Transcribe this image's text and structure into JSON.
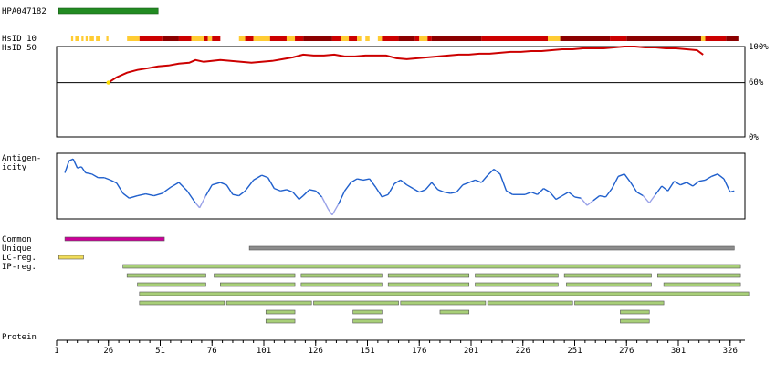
{
  "antibody_id": "HPA047182",
  "labels": {
    "hsid10": "HsID 10",
    "hsid50": "HsID 50",
    "antigenicity_line1": "Antigen-",
    "antigenicity_line2": "icity",
    "common": "Common",
    "unique": "Unique",
    "lc_reg": "LC-reg.",
    "ip_reg": "IP-reg.",
    "protein": "Protein"
  },
  "identity_axis": {
    "top": "100%",
    "mid": "60%",
    "bottom": "0%"
  },
  "colors": {
    "antibody_bar": "#228b22",
    "identity_line": "#cc0000",
    "identity_high": "#8b0000",
    "identity_mid": "#cc0000",
    "identity_low": "#ffcc33",
    "antigenicity_line": "#1f5fcc",
    "antigenicity_low": "#9aa2e8",
    "common_bar": "#cc0099",
    "unique_bar": "#8c8c8c",
    "lc_bar": "#f0dc5a",
    "ip_bar": "#a8cf78"
  },
  "protein_axis": {
    "range": [
      1,
      332
    ],
    "ticks": [
      1,
      26,
      51,
      76,
      101,
      126,
      151,
      176,
      201,
      226,
      251,
      276,
      301,
      326
    ]
  },
  "antibody_region": [
    2,
    50
  ],
  "hsid10_segments": [
    {
      "start": 8,
      "end": 9,
      "level": "low"
    },
    {
      "start": 10,
      "end": 12,
      "level": "low"
    },
    {
      "start": 13,
      "end": 14,
      "level": "low"
    },
    {
      "start": 15,
      "end": 16,
      "level": "low"
    },
    {
      "start": 17,
      "end": 19,
      "level": "low"
    },
    {
      "start": 20,
      "end": 22,
      "level": "low"
    },
    {
      "start": 25,
      "end": 26,
      "level": "low"
    },
    {
      "start": 35,
      "end": 41,
      "level": "low"
    },
    {
      "start": 41,
      "end": 52,
      "level": "mid"
    },
    {
      "start": 52,
      "end": 60,
      "level": "high"
    },
    {
      "start": 60,
      "end": 66,
      "level": "mid"
    },
    {
      "start": 66,
      "end": 72,
      "level": "low"
    },
    {
      "start": 72,
      "end": 74,
      "level": "mid"
    },
    {
      "start": 74,
      "end": 76,
      "level": "low"
    },
    {
      "start": 76,
      "end": 80,
      "level": "mid"
    },
    {
      "start": 89,
      "end": 92,
      "level": "low"
    },
    {
      "start": 92,
      "end": 96,
      "level": "mid"
    },
    {
      "start": 96,
      "end": 104,
      "level": "low"
    },
    {
      "start": 104,
      "end": 112,
      "level": "mid"
    },
    {
      "start": 112,
      "end": 116,
      "level": "low"
    },
    {
      "start": 116,
      "end": 120,
      "level": "mid"
    },
    {
      "start": 120,
      "end": 134,
      "level": "high"
    },
    {
      "start": 134,
      "end": 138,
      "level": "mid"
    },
    {
      "start": 138,
      "end": 142,
      "level": "low"
    },
    {
      "start": 142,
      "end": 146,
      "level": "mid"
    },
    {
      "start": 146,
      "end": 148,
      "level": "low"
    },
    {
      "start": 150,
      "end": 152,
      "level": "low"
    },
    {
      "start": 156,
      "end": 158,
      "level": "low"
    },
    {
      "start": 158,
      "end": 166,
      "level": "mid"
    },
    {
      "start": 166,
      "end": 174,
      "level": "high"
    },
    {
      "start": 174,
      "end": 176,
      "level": "mid"
    },
    {
      "start": 176,
      "end": 180,
      "level": "low"
    },
    {
      "start": 180,
      "end": 182,
      "level": "mid"
    },
    {
      "start": 182,
      "end": 206,
      "level": "high"
    },
    {
      "start": 206,
      "end": 238,
      "level": "mid"
    },
    {
      "start": 238,
      "end": 244,
      "level": "low"
    },
    {
      "start": 244,
      "end": 268,
      "level": "high"
    },
    {
      "start": 268,
      "end": 276,
      "level": "mid"
    },
    {
      "start": 276,
      "end": 312,
      "level": "high"
    },
    {
      "start": 312,
      "end": 314,
      "level": "low"
    },
    {
      "start": 314,
      "end": 324,
      "level": "mid"
    },
    {
      "start": 324,
      "end": 330,
      "level": "high"
    }
  ],
  "hsid50_profile": [
    [
      26,
      60
    ],
    [
      30,
      66
    ],
    [
      35,
      71
    ],
    [
      40,
      74
    ],
    [
      45,
      76
    ],
    [
      50,
      78
    ],
    [
      55,
      79
    ],
    [
      60,
      81
    ],
    [
      65,
      82
    ],
    [
      68,
      85
    ],
    [
      72,
      83
    ],
    [
      76,
      84
    ],
    [
      80,
      85
    ],
    [
      85,
      84
    ],
    [
      90,
      83
    ],
    [
      95,
      82
    ],
    [
      100,
      83
    ],
    [
      105,
      84
    ],
    [
      110,
      86
    ],
    [
      115,
      88
    ],
    [
      120,
      91
    ],
    [
      125,
      90
    ],
    [
      130,
      90
    ],
    [
      135,
      91
    ],
    [
      140,
      89
    ],
    [
      145,
      89
    ],
    [
      150,
      90
    ],
    [
      155,
      90
    ],
    [
      160,
      90
    ],
    [
      165,
      87
    ],
    [
      170,
      86
    ],
    [
      175,
      87
    ],
    [
      180,
      88
    ],
    [
      185,
      89
    ],
    [
      190,
      90
    ],
    [
      195,
      91
    ],
    [
      200,
      91
    ],
    [
      205,
      92
    ],
    [
      210,
      92
    ],
    [
      215,
      93
    ],
    [
      220,
      94
    ],
    [
      225,
      94
    ],
    [
      230,
      95
    ],
    [
      235,
      95
    ],
    [
      240,
      96
    ],
    [
      245,
      97
    ],
    [
      250,
      97
    ],
    [
      255,
      98
    ],
    [
      260,
      98
    ],
    [
      265,
      98
    ],
    [
      270,
      99
    ],
    [
      275,
      100
    ],
    [
      280,
      100
    ],
    [
      285,
      99
    ],
    [
      290,
      99
    ],
    [
      295,
      98
    ],
    [
      300,
      98
    ],
    [
      305,
      97
    ],
    [
      310,
      96
    ],
    [
      313,
      91
    ]
  ],
  "antigenicity_profile": [
    [
      5,
      0.72
    ],
    [
      7,
      0.92
    ],
    [
      9,
      0.95
    ],
    [
      11,
      0.8
    ],
    [
      13,
      0.82
    ],
    [
      15,
      0.72
    ],
    [
      18,
      0.7
    ],
    [
      21,
      0.64
    ],
    [
      24,
      0.64
    ],
    [
      27,
      0.6
    ],
    [
      30,
      0.55
    ],
    [
      33,
      0.38
    ],
    [
      36,
      0.3
    ],
    [
      40,
      0.34
    ],
    [
      44,
      0.37
    ],
    [
      48,
      0.34
    ],
    [
      52,
      0.38
    ],
    [
      56,
      0.48
    ],
    [
      60,
      0.56
    ],
    [
      64,
      0.42
    ],
    [
      68,
      0.22
    ],
    [
      70,
      0.14
    ],
    [
      73,
      0.34
    ],
    [
      76,
      0.52
    ],
    [
      80,
      0.56
    ],
    [
      83,
      0.52
    ],
    [
      86,
      0.36
    ],
    [
      89,
      0.34
    ],
    [
      92,
      0.42
    ],
    [
      96,
      0.6
    ],
    [
      100,
      0.68
    ],
    [
      103,
      0.64
    ],
    [
      106,
      0.46
    ],
    [
      109,
      0.42
    ],
    [
      112,
      0.44
    ],
    [
      115,
      0.4
    ],
    [
      118,
      0.28
    ],
    [
      120,
      0.34
    ],
    [
      123,
      0.44
    ],
    [
      126,
      0.42
    ],
    [
      129,
      0.32
    ],
    [
      132,
      0.12
    ],
    [
      134,
      0.02
    ],
    [
      137,
      0.2
    ],
    [
      140,
      0.42
    ],
    [
      143,
      0.56
    ],
    [
      146,
      0.62
    ],
    [
      149,
      0.6
    ],
    [
      152,
      0.62
    ],
    [
      155,
      0.48
    ],
    [
      158,
      0.32
    ],
    [
      161,
      0.36
    ],
    [
      164,
      0.54
    ],
    [
      167,
      0.6
    ],
    [
      170,
      0.52
    ],
    [
      173,
      0.46
    ],
    [
      176,
      0.4
    ],
    [
      179,
      0.44
    ],
    [
      182,
      0.56
    ],
    [
      185,
      0.44
    ],
    [
      188,
      0.4
    ],
    [
      191,
      0.38
    ],
    [
      194,
      0.4
    ],
    [
      197,
      0.52
    ],
    [
      200,
      0.56
    ],
    [
      203,
      0.6
    ],
    [
      206,
      0.56
    ],
    [
      209,
      0.68
    ],
    [
      212,
      0.78
    ],
    [
      215,
      0.7
    ],
    [
      218,
      0.42
    ],
    [
      221,
      0.36
    ],
    [
      224,
      0.36
    ],
    [
      227,
      0.36
    ],
    [
      230,
      0.4
    ],
    [
      233,
      0.36
    ],
    [
      236,
      0.46
    ],
    [
      239,
      0.4
    ],
    [
      242,
      0.28
    ],
    [
      245,
      0.34
    ],
    [
      248,
      0.4
    ],
    [
      251,
      0.32
    ],
    [
      254,
      0.3
    ],
    [
      257,
      0.18
    ],
    [
      260,
      0.26
    ],
    [
      263,
      0.34
    ],
    [
      266,
      0.32
    ],
    [
      269,
      0.46
    ],
    [
      272,
      0.66
    ],
    [
      275,
      0.7
    ],
    [
      278,
      0.56
    ],
    [
      281,
      0.4
    ],
    [
      284,
      0.34
    ],
    [
      287,
      0.22
    ],
    [
      290,
      0.36
    ],
    [
      293,
      0.5
    ],
    [
      296,
      0.42
    ],
    [
      299,
      0.58
    ],
    [
      302,
      0.52
    ],
    [
      305,
      0.56
    ],
    [
      308,
      0.5
    ],
    [
      311,
      0.58
    ],
    [
      314,
      0.6
    ],
    [
      317,
      0.66
    ],
    [
      320,
      0.7
    ],
    [
      323,
      0.62
    ],
    [
      326,
      0.4
    ],
    [
      328,
      0.42
    ]
  ],
  "common_regions": [
    [
      5,
      53
    ]
  ],
  "unique_regions": [
    [
      94,
      328
    ]
  ],
  "lc_regions": [
    [
      2,
      14
    ]
  ],
  "ip_rows": [
    [
      [
        33,
        331
      ]
    ],
    [
      [
        35,
        73
      ],
      [
        77,
        116
      ],
      [
        119,
        158
      ],
      [
        161,
        200
      ],
      [
        203,
        243
      ],
      [
        246,
        288
      ],
      [
        291,
        331
      ]
    ],
    [
      [
        40,
        73
      ],
      [
        80,
        116
      ],
      [
        119,
        158
      ],
      [
        161,
        200
      ],
      [
        203,
        243
      ],
      [
        247,
        288
      ],
      [
        294,
        331
      ]
    ],
    [
      [
        41,
        335
      ]
    ],
    [
      [
        41,
        82
      ],
      [
        83,
        124
      ],
      [
        125,
        166
      ],
      [
        167,
        208
      ],
      [
        209,
        250
      ],
      [
        251,
        294
      ]
    ],
    [
      [
        102,
        116
      ],
      [
        144,
        158
      ],
      [
        186,
        200
      ],
      [
        273,
        287
      ]
    ],
    [
      [
        102,
        116
      ],
      [
        144,
        158
      ],
      [
        273,
        287
      ]
    ]
  ]
}
